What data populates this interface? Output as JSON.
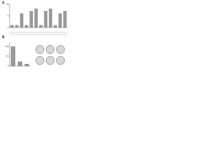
{
  "panels": [
    "A",
    "B"
  ],
  "chart_data": [
    {
      "type": "bar",
      "categories": [
        null,
        null,
        null,
        null,
        null,
        null,
        null,
        null,
        null,
        null,
        null,
        null
      ],
      "values": [
        1,
        1,
        6,
        1,
        7,
        8,
        1,
        7,
        8,
        1,
        6,
        7
      ],
      "color": "#9a9a9a",
      "ylim": [
        0,
        10
      ],
      "yticks": [
        0,
        5,
        10
      ]
    },
    {
      "type": "bar",
      "categories": [
        null,
        null,
        null
      ],
      "values": [
        100,
        22,
        10
      ],
      "color": "#9a9a9a",
      "ylim": [
        0,
        120
      ],
      "yticks": [
        0,
        50,
        100
      ]
    }
  ]
}
